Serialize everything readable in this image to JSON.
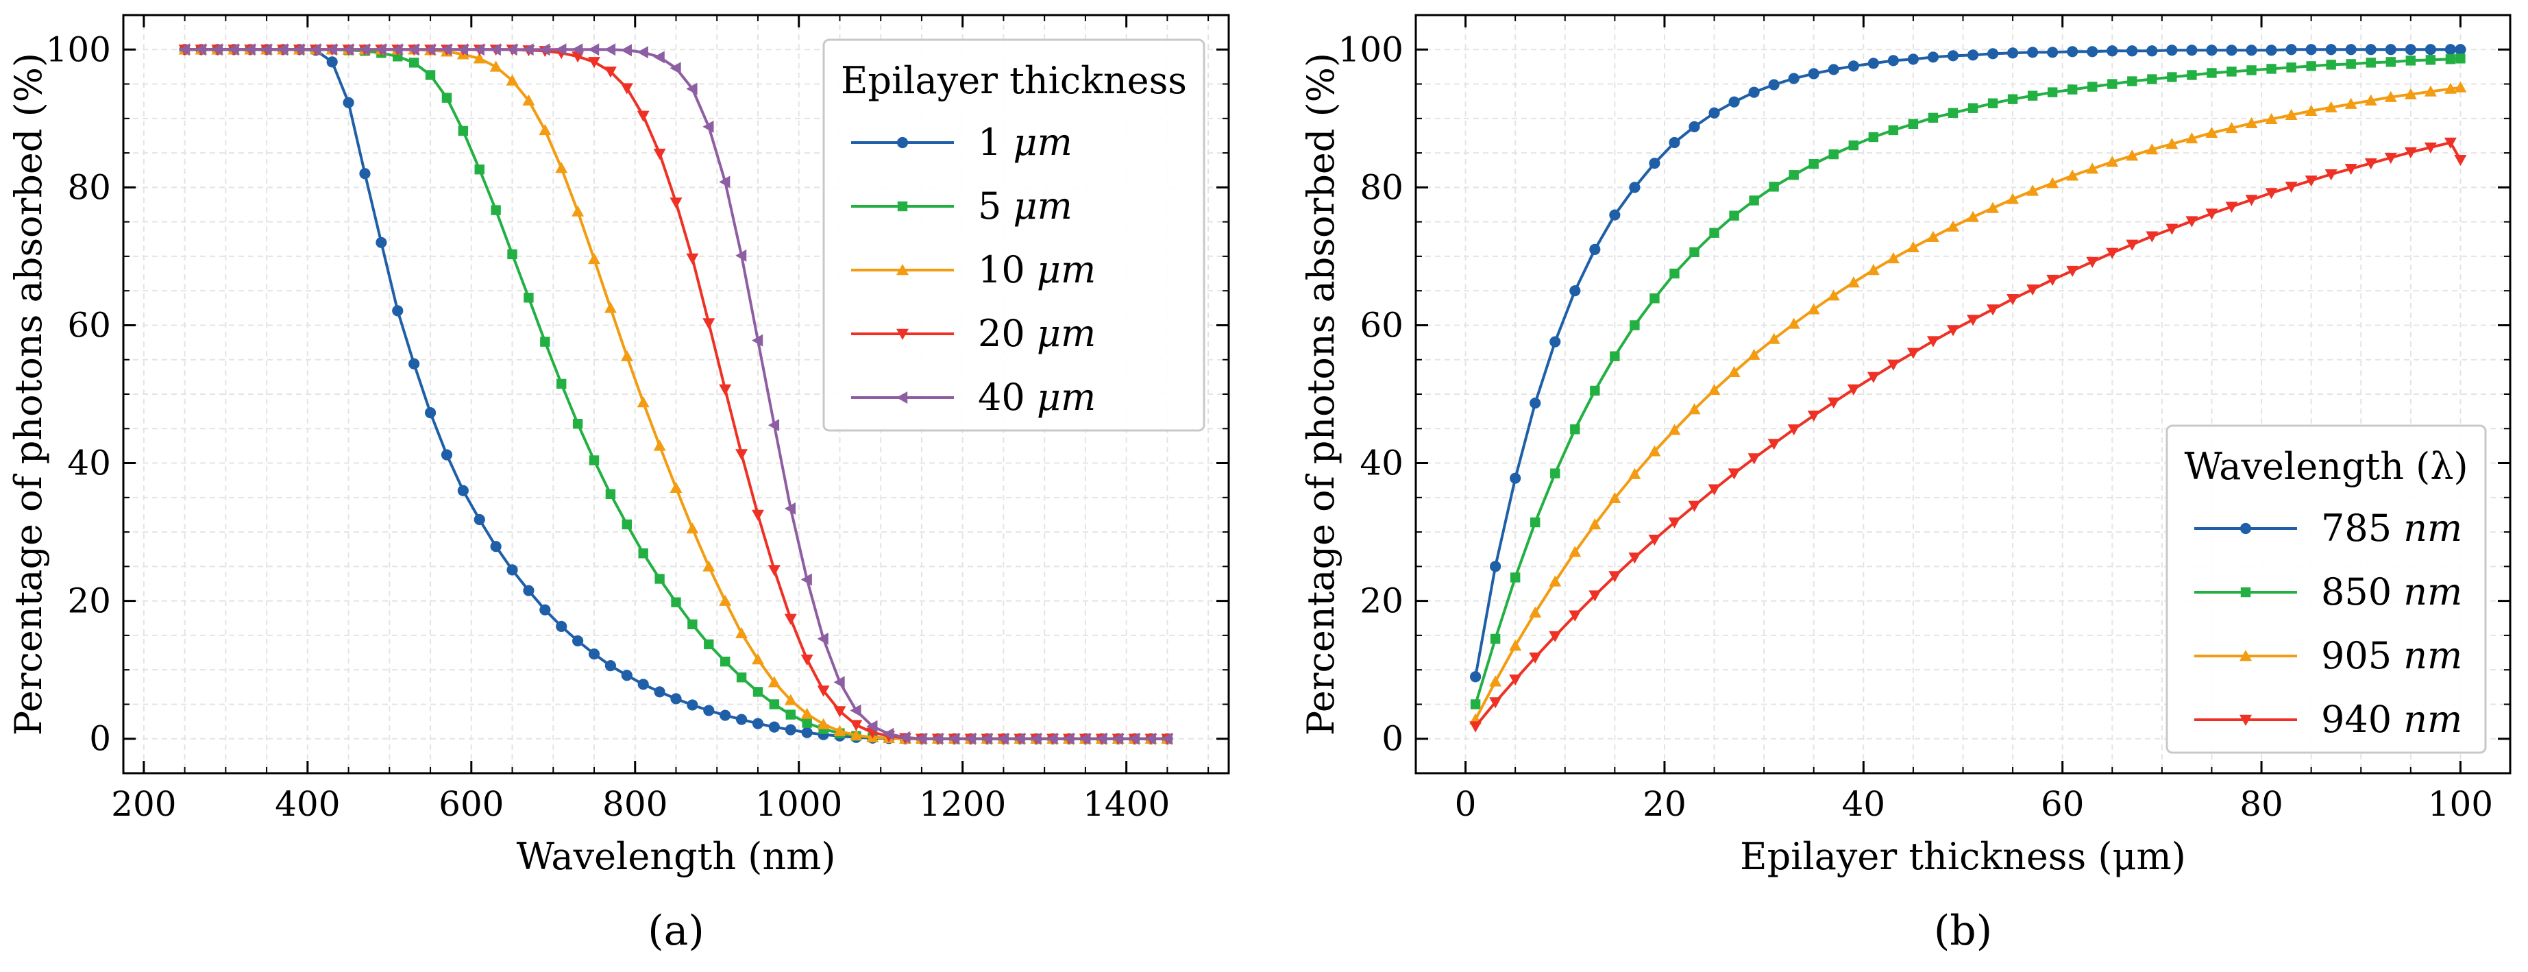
{
  "chart_data": [
    {
      "type": "line",
      "caption": "(a)",
      "xlabel": "Wavelength (nm)",
      "ylabel": "Percentage of photons absorbed (%)",
      "xlim": [
        175,
        1525
      ],
      "ylim": [
        -5,
        105
      ],
      "xticks": [
        200,
        400,
        600,
        800,
        1000,
        1200,
        1400
      ],
      "yticks": [
        0,
        20,
        40,
        60,
        80,
        100
      ],
      "grid": true,
      "legend": {
        "title": "Epilayer thickness",
        "position": "top-right"
      },
      "x": [
        250,
        270,
        290,
        310,
        330,
        350,
        370,
        390,
        410,
        430,
        450,
        470,
        490,
        510,
        530,
        550,
        570,
        590,
        610,
        630,
        650,
        670,
        690,
        710,
        730,
        750,
        770,
        790,
        810,
        830,
        850,
        870,
        890,
        910,
        930,
        950,
        970,
        990,
        1010,
        1030,
        1050,
        1070,
        1090,
        1110,
        1130,
        1150,
        1170,
        1190,
        1210,
        1230,
        1250,
        1270,
        1290,
        1310,
        1330,
        1350,
        1370,
        1390,
        1410,
        1430,
        1450
      ],
      "series": [
        {
          "name": "1 μm",
          "color": "#1f5fa8",
          "marker": "circle",
          "values": [
            100,
            100,
            100,
            100,
            100,
            100,
            100,
            100,
            99.9,
            98.2,
            92.3,
            82.0,
            72.0,
            62.1,
            54.4,
            47.3,
            41.2,
            36.0,
            31.8,
            27.9,
            24.5,
            21.5,
            18.7,
            16.3,
            14.2,
            12.3,
            10.6,
            9.2,
            7.9,
            6.8,
            5.8,
            4.9,
            4.1,
            3.4,
            2.8,
            2.2,
            1.7,
            1.3,
            0.9,
            0.6,
            0.4,
            0.2,
            0.1,
            0.05,
            0,
            0,
            0,
            0,
            0,
            0,
            0,
            0,
            0,
            0,
            0,
            0,
            0,
            0,
            0,
            0,
            0
          ]
        },
        {
          "name": "5 μm",
          "color": "#22b043",
          "marker": "square",
          "values": [
            100,
            100,
            100,
            100,
            100,
            100,
            100,
            100,
            100,
            100,
            99.9,
            99.8,
            99.5,
            99.0,
            98.1,
            96.3,
            93.0,
            88.2,
            82.6,
            76.7,
            70.3,
            64.0,
            57.6,
            51.5,
            45.7,
            40.4,
            35.5,
            31.1,
            26.9,
            23.2,
            19.8,
            16.6,
            13.7,
            11.2,
            8.9,
            6.8,
            5.0,
            3.5,
            2.3,
            1.4,
            0.8,
            0.4,
            0.2,
            0.1,
            0,
            0,
            0,
            0,
            0,
            0,
            0,
            0,
            0,
            0,
            0,
            0,
            0,
            0,
            0,
            0,
            0
          ]
        },
        {
          "name": "10 μm",
          "color": "#f39c12",
          "marker": "triangle-up",
          "values": [
            100,
            100,
            100,
            100,
            100,
            100,
            100,
            100,
            100,
            100,
            100,
            100,
            100,
            100,
            100,
            99.9,
            99.7,
            99.3,
            98.7,
            97.5,
            95.5,
            92.6,
            88.3,
            82.8,
            76.5,
            69.6,
            62.5,
            55.5,
            48.8,
            42.5,
            36.4,
            30.5,
            25.0,
            20.0,
            15.3,
            11.5,
            8.2,
            5.6,
            3.6,
            2.1,
            1.1,
            0.5,
            0.2,
            0.1,
            0,
            0,
            0,
            0,
            0,
            0,
            0,
            0,
            0,
            0,
            0,
            0,
            0,
            0,
            0,
            0,
            0
          ]
        },
        {
          "name": "20 μm",
          "color": "#ee3124",
          "marker": "triangle-down",
          "values": [
            100,
            100,
            100,
            100,
            100,
            100,
            100,
            100,
            100,
            100,
            100,
            100,
            100,
            100,
            100,
            100,
            100,
            100,
            100,
            100,
            100,
            99.9,
            99.8,
            99.5,
            99.0,
            98.2,
            96.8,
            94.4,
            90.4,
            84.9,
            77.8,
            69.7,
            60.3,
            50.7,
            41.3,
            32.5,
            24.5,
            17.4,
            11.5,
            7.0,
            4.0,
            2.0,
            0.9,
            0.4,
            0.1,
            0,
            0,
            0,
            0,
            0,
            0,
            0,
            0,
            0,
            0,
            0,
            0,
            0,
            0,
            0,
            0
          ]
        },
        {
          "name": "40 μm",
          "color": "#8e5ea2",
          "marker": "triangle-left",
          "values": [
            100,
            100,
            100,
            100,
            100,
            100,
            100,
            100,
            100,
            100,
            100,
            100,
            100,
            100,
            100,
            100,
            100,
            100,
            100,
            100,
            100,
            100,
            100,
            100,
            100,
            100,
            100,
            99.9,
            99.6,
            98.9,
            97.3,
            94.3,
            88.8,
            80.8,
            70.1,
            57.8,
            45.5,
            33.4,
            23.1,
            14.5,
            8.2,
            4.1,
            1.8,
            0.7,
            0.2,
            0,
            0,
            0,
            0,
            0,
            0,
            0,
            0,
            0,
            0,
            0,
            0,
            0,
            0,
            0,
            0
          ]
        }
      ]
    },
    {
      "type": "line",
      "caption": "(b)",
      "xlabel": "Epilayer thickness (μm)",
      "ylabel": "Percentage of photons absorbed (%)",
      "xlim": [
        -5,
        105
      ],
      "ylim": [
        -5,
        105
      ],
      "xticks": [
        0,
        20,
        40,
        60,
        80,
        100
      ],
      "yticks": [
        0,
        20,
        40,
        60,
        80,
        100
      ],
      "grid": true,
      "legend": {
        "title": "Wavelength (λ)",
        "position": "bottom-right"
      },
      "x": [
        1,
        3,
        5,
        7,
        9,
        11,
        13,
        15,
        17,
        19,
        21,
        23,
        25,
        27,
        29,
        31,
        33,
        35,
        37,
        39,
        41,
        43,
        45,
        47,
        49,
        51,
        53,
        55,
        57,
        59,
        61,
        63,
        65,
        67,
        69,
        71,
        73,
        75,
        77,
        79,
        81,
        83,
        85,
        87,
        89,
        91,
        93,
        95,
        97,
        99,
        100
      ],
      "series": [
        {
          "name": "785 nm",
          "color": "#1f5fa8",
          "marker": "circle",
          "values": [
            9,
            25,
            37.8,
            48.7,
            57.6,
            65,
            71,
            76,
            80,
            83.5,
            86.5,
            88.8,
            90.8,
            92.4,
            93.8,
            94.9,
            95.8,
            96.5,
            97.1,
            97.6,
            98,
            98.4,
            98.6,
            98.9,
            99.1,
            99.2,
            99.4,
            99.5,
            99.6,
            99.6,
            99.7,
            99.7,
            99.8,
            99.8,
            99.8,
            99.9,
            99.9,
            99.9,
            99.9,
            99.9,
            99.9,
            100,
            100,
            100,
            100,
            100,
            100,
            100,
            100,
            100,
            100
          ]
        },
        {
          "name": "850 nm",
          "color": "#22b043",
          "marker": "square",
          "values": [
            5,
            14.5,
            23.4,
            31.4,
            38.5,
            44.9,
            50.5,
            55.5,
            60,
            63.9,
            67.5,
            70.6,
            73.4,
            75.9,
            78.1,
            80.1,
            81.8,
            83.4,
            84.8,
            86.1,
            87.3,
            88.3,
            89.2,
            90.1,
            90.8,
            91.5,
            92.2,
            92.8,
            93.3,
            93.8,
            94.2,
            94.6,
            95,
            95.4,
            95.7,
            96,
            96.3,
            96.6,
            96.8,
            97,
            97.2,
            97.4,
            97.6,
            97.8,
            97.9,
            98.1,
            98.2,
            98.4,
            98.5,
            98.6,
            98.7
          ]
        },
        {
          "name": "905 nm",
          "color": "#f39c12",
          "marker": "triangle-up",
          "values": [
            2.8,
            8.3,
            13.5,
            18.3,
            22.8,
            27.1,
            31.1,
            34.9,
            38.4,
            41.7,
            44.8,
            47.8,
            50.6,
            53.2,
            55.7,
            58,
            60.2,
            62.3,
            64.3,
            66.2,
            68,
            69.7,
            71.3,
            72.8,
            74.3,
            75.7,
            77,
            78.3,
            79.5,
            80.6,
            81.7,
            82.7,
            83.7,
            84.6,
            85.5,
            86.3,
            87.1,
            87.9,
            88.6,
            89.3,
            89.9,
            90.5,
            91.1,
            91.6,
            92.1,
            92.6,
            93.1,
            93.5,
            93.9,
            94.3,
            94.5
          ]
        },
        {
          "name": "940 nm",
          "color": "#ee3124",
          "marker": "triangle-down",
          "values": [
            1.8,
            5.3,
            8.6,
            11.8,
            14.9,
            17.9,
            20.8,
            23.6,
            26.3,
            28.9,
            31.4,
            33.8,
            36.2,
            38.5,
            40.7,
            42.8,
            44.9,
            46.9,
            48.8,
            50.7,
            52.5,
            54.3,
            56,
            57.7,
            59.3,
            60.8,
            62.3,
            63.8,
            65.2,
            66.6,
            67.9,
            69.2,
            70.5,
            71.7,
            72.9,
            74,
            75.1,
            76.2,
            77.2,
            78.2,
            79.2,
            80.1,
            81,
            81.9,
            82.7,
            83.5,
            84.3,
            85.1,
            85.8,
            86.5,
            84
          ]
        }
      ]
    }
  ]
}
